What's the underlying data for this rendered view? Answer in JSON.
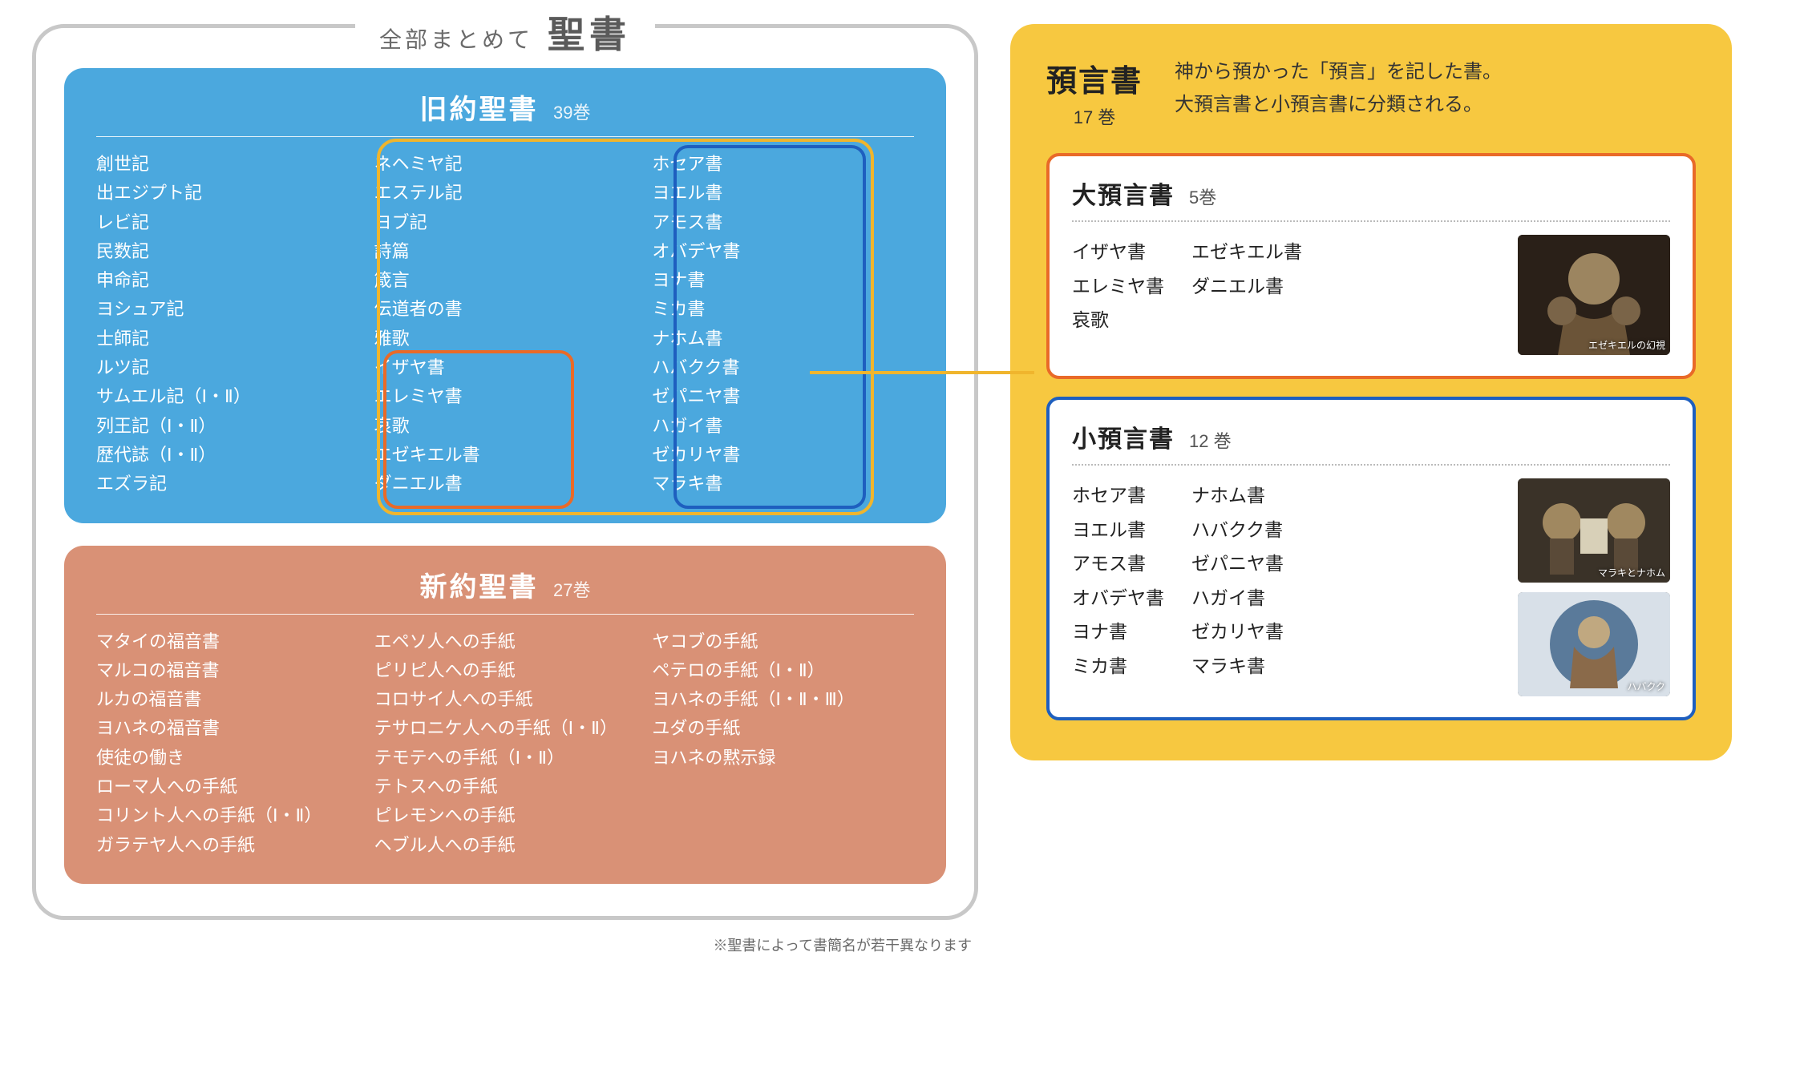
{
  "title": {
    "pre": "全部まとめて",
    "main": "聖書"
  },
  "old_testament": {
    "title": "旧約聖書",
    "count_label": "39巻",
    "color": "#4ba8de",
    "columns": [
      [
        "創世記",
        "出エジプト記",
        "レビ記",
        "民数記",
        "申命記",
        "ヨシュア記",
        "士師記",
        "ルツ記",
        "サムエル記（Ⅰ・Ⅱ）",
        "列王記（Ⅰ・Ⅱ）",
        "歴代誌（Ⅰ・Ⅱ）",
        "エズラ記"
      ],
      [
        "ネヘミヤ記",
        "エステル記",
        "ヨブ記",
        "詩篇",
        "箴言",
        "伝道者の書",
        "雅歌",
        "イザヤ書",
        "エレミヤ書",
        "哀歌",
        "エゼキエル書",
        "ダニエル書"
      ],
      [
        "ホセア書",
        "ヨエル書",
        "アモス書",
        "オバデヤ書",
        "ヨナ書",
        "ミカ書",
        "ナホム書",
        "ハバクク書",
        "ゼパニヤ書",
        "ハガイ書",
        "ゼカリヤ書",
        "マラキ書"
      ]
    ]
  },
  "new_testament": {
    "title": "新約聖書",
    "count_label": "27巻",
    "color": "#d99176",
    "columns": [
      [
        "マタイの福音書",
        "マルコの福音書",
        "ルカの福音書",
        "ヨハネの福音書",
        "使徒の働き",
        "ローマ人への手紙",
        "コリント人への手紙（Ⅰ・Ⅱ）",
        "ガラテヤ人への手紙"
      ],
      [
        "エペソ人への手紙",
        "ピリピ人への手紙",
        "コロサイ人への手紙",
        "テサロニケ人への手紙（Ⅰ・Ⅱ）",
        "テモテへの手紙（Ⅰ・Ⅱ）",
        "テトスへの手紙",
        "ピレモンへの手紙",
        "ヘブル人への手紙"
      ],
      [
        "ヤコブの手紙",
        "ペテロの手紙（Ⅰ・Ⅱ）",
        "ヨハネの手紙（Ⅰ・Ⅱ・Ⅲ）",
        "ユダの手紙",
        "ヨハネの黙示録"
      ]
    ]
  },
  "footnote": "※聖書によって書簡名が若干異なります",
  "right": {
    "title": "預言書",
    "count_label": "17 巻",
    "desc_line1": "神から預かった「預言」を記した書。",
    "desc_line2": "大預言書と小預言書に分類される。",
    "bg_color": "#f7c840",
    "major": {
      "title": "大預言書",
      "count_label": "5巻",
      "border_color": "#e96a28",
      "columns": [
        [
          "イザヤ書",
          "エレミヤ書",
          "哀歌"
        ],
        [
          "エゼキエル書",
          "ダニエル書"
        ]
      ],
      "thumb_caption": "エゼキエルの幻視"
    },
    "minor": {
      "title": "小預言書",
      "count_label": "12 巻",
      "border_color": "#1e5fbf",
      "columns": [
        [
          "ホセア書",
          "ヨエル書",
          "アモス書",
          "オバデヤ書",
          "ヨナ書",
          "ミカ書"
        ],
        [
          "ナホム書",
          "ハバクク書",
          "ゼパニヤ書",
          "ハガイ書",
          "ゼカリヤ書",
          "マラキ書"
        ]
      ],
      "thumb1_caption": "マラキとナホム",
      "thumb2_caption": "ハバクク"
    }
  },
  "highlight_colors": {
    "outer": "#f0b52d",
    "major": "#e96a28",
    "minor": "#1e5fbf"
  }
}
